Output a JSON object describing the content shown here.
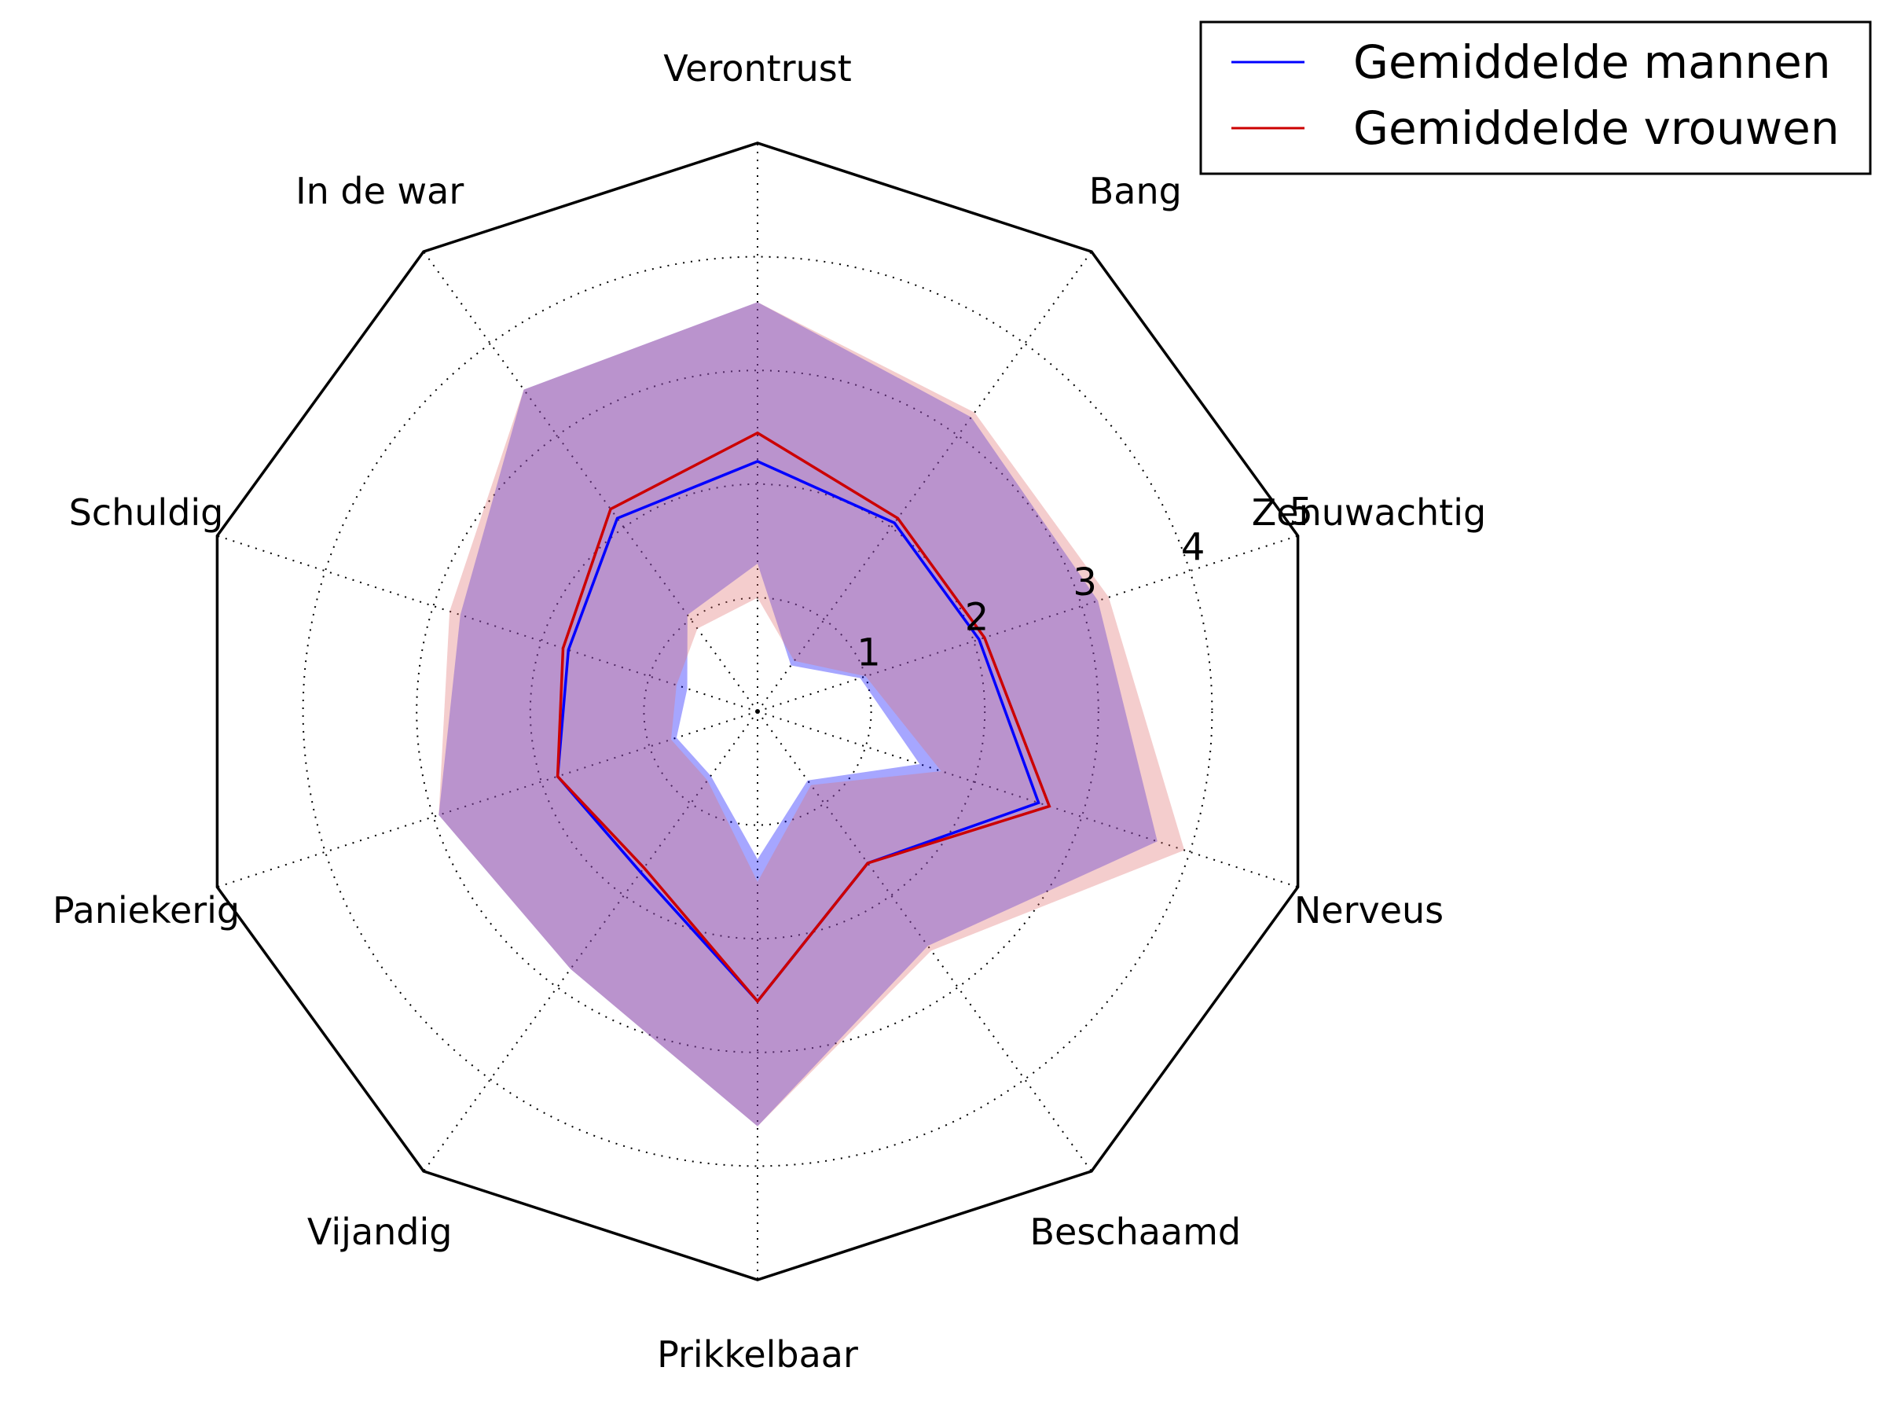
{
  "chart_data": {
    "type": "radar",
    "categories": [
      "Zenuwachtig",
      "Bang",
      "Verontrust",
      "In de war",
      "Schuldig",
      "Paniekerig",
      "Vijandig",
      "Prikkelbaar",
      "Beschaamd",
      "Nerveus"
    ],
    "radial_ticks": [
      "1",
      "2",
      "3",
      "4",
      "5"
    ],
    "rlim": [
      0,
      5
    ],
    "grid": true,
    "legend_position": "top-right",
    "series": [
      {
        "name": "Gemiddelde mannen",
        "color": "#0000ff",
        "fill_color": "#0000ff",
        "values": [
          2.05,
          2.05,
          2.2,
          2.1,
          1.75,
          1.85,
          1.75,
          2.55,
          1.65,
          2.6
        ],
        "band_lower": [
          0.95,
          0.5,
          1.3,
          1.05,
          0.65,
          0.75,
          0.7,
          1.3,
          0.75,
          1.5
        ],
        "band_upper": [
          3.15,
          3.2,
          3.6,
          3.5,
          2.75,
          2.95,
          2.8,
          3.65,
          2.55,
          3.7
        ]
      },
      {
        "name": "Gemiddelde vrouwen",
        "color": "#cc0000",
        "fill_color": "#e07070",
        "values": [
          2.1,
          2.1,
          2.45,
          2.2,
          1.8,
          1.85,
          1.7,
          2.55,
          1.65,
          2.7
        ],
        "band_lower": [
          1.0,
          0.55,
          1.0,
          0.9,
          0.75,
          0.8,
          0.75,
          1.5,
          0.8,
          1.7
        ],
        "band_upper": [
          3.25,
          3.25,
          3.6,
          3.5,
          2.85,
          2.95,
          2.8,
          3.65,
          2.6,
          3.95
        ]
      }
    ]
  }
}
